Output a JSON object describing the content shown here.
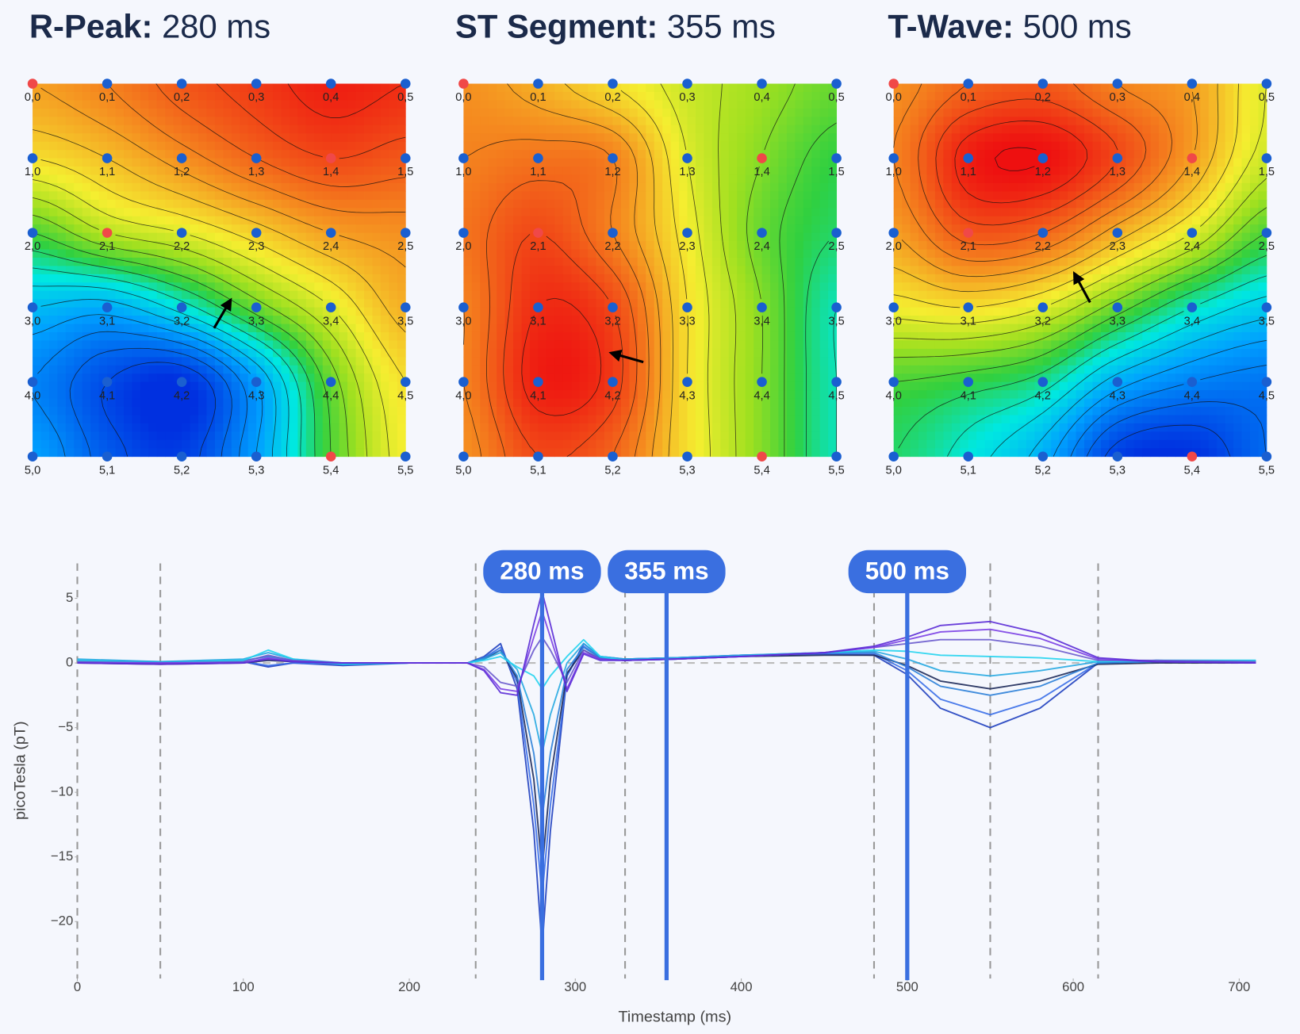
{
  "heatmaps": {
    "colorscale": [
      [
        -1,
        "#0030e0"
      ],
      [
        -0.6,
        "#00a0ff"
      ],
      [
        -0.35,
        "#00e8e0"
      ],
      [
        -0.15,
        "#30d040"
      ],
      [
        0.05,
        "#a0e020"
      ],
      [
        0.25,
        "#f5ee30"
      ],
      [
        0.55,
        "#f59020"
      ],
      [
        1,
        "#ee1010"
      ]
    ],
    "sensor_color": "#1a5fd0",
    "highlight_color": "#f04848",
    "highlighted": [
      [
        0,
        0
      ],
      [
        1,
        4
      ],
      [
        2,
        1
      ],
      [
        5,
        4
      ]
    ],
    "sensor_labels": [
      [
        "0,0",
        "0,1",
        "0,2",
        "0,3",
        "0,4",
        "0,5"
      ],
      [
        "1,0",
        "1,1",
        "1,2",
        "1,3",
        "1,4",
        "1,5"
      ],
      [
        "2,0",
        "2,1",
        "2,2",
        "2,3",
        "2,4",
        "2,5"
      ],
      [
        "3,0",
        "3,1",
        "3,2",
        "3,3",
        "3,4",
        "3,5"
      ],
      [
        "4,0",
        "4,1",
        "4,2",
        "4,3",
        "4,4",
        "4,5"
      ],
      [
        "5,0",
        "5,1",
        "5,2",
        "5,3",
        "5,4",
        "5,5"
      ]
    ],
    "maps": [
      {
        "label": "R-Peak:",
        "time": "280 ms",
        "values": [
          [
            0.5,
            0.6,
            0.75,
            0.85,
            0.95,
            0.9
          ],
          [
            0.3,
            0.4,
            0.55,
            0.7,
            0.8,
            0.75
          ],
          [
            -0.1,
            0.1,
            0.2,
            0.35,
            0.5,
            0.55
          ],
          [
            -0.5,
            -0.55,
            -0.35,
            -0.05,
            0.2,
            0.45
          ],
          [
            -0.7,
            -0.9,
            -1.0,
            -0.6,
            -0.05,
            0.3
          ],
          [
            -0.6,
            -0.85,
            -0.95,
            -0.6,
            -0.1,
            0.25
          ]
        ]
      },
      {
        "label": "ST Segment:",
        "time": "355 ms",
        "values": [
          [
            0.55,
            0.45,
            0.3,
            0.15,
            0.05,
            -0.05
          ],
          [
            0.6,
            0.65,
            0.6,
            0.2,
            0.0,
            -0.15
          ],
          [
            0.65,
            0.8,
            0.6,
            0.25,
            -0.05,
            -0.2
          ],
          [
            0.6,
            0.9,
            0.8,
            0.3,
            0.0,
            -0.3
          ],
          [
            0.6,
            0.95,
            0.85,
            0.3,
            0.0,
            -0.3
          ],
          [
            0.55,
            0.8,
            0.7,
            0.3,
            0.0,
            -0.3
          ]
        ]
      },
      {
        "label": "T-Wave:",
        "time": "500 ms",
        "values": [
          [
            0.55,
            0.7,
            0.75,
            0.6,
            0.5,
            0.2
          ],
          [
            0.6,
            0.95,
            1.0,
            0.8,
            0.5,
            0.15
          ],
          [
            0.5,
            0.75,
            0.7,
            0.45,
            0.2,
            -0.1
          ],
          [
            0.25,
            0.3,
            0.2,
            -0.05,
            -0.3,
            -0.45
          ],
          [
            -0.1,
            -0.15,
            -0.25,
            -0.55,
            -0.7,
            -0.75
          ],
          [
            -0.2,
            -0.35,
            -0.55,
            -0.95,
            -1.0,
            -0.8
          ]
        ]
      }
    ]
  },
  "chart_data": {
    "type": "line",
    "x_label": "Timestamp (ms)",
    "y_label": "picoTesla (pT)",
    "xlim": [
      0,
      710
    ],
    "ylim": [
      -24.4,
      7.7
    ],
    "xticks": [
      0,
      100,
      200,
      300,
      400,
      500,
      600,
      700
    ],
    "yticks": [
      {
        "value": -20,
        "label": "−20"
      },
      {
        "value": -15,
        "label": "−15"
      },
      {
        "value": -10,
        "label": "−10"
      },
      {
        "value": -5,
        "label": "−5"
      },
      0,
      5
    ],
    "zeroline": true,
    "vlines": [
      0,
      50,
      240,
      330,
      480,
      550,
      615
    ],
    "marker_color": "#3a6fe0",
    "markers": [
      {
        "x": 280,
        "label": "280 ms"
      },
      {
        "x": 355,
        "label": "355 ms"
      },
      {
        "x": 500,
        "label": "500 ms"
      }
    ],
    "x": [
      0,
      50,
      100,
      115,
      130,
      160,
      200,
      235,
      245,
      255,
      265,
      275,
      280,
      285,
      295,
      305,
      315,
      330,
      360,
      400,
      450,
      480,
      500,
      520,
      550,
      580,
      615,
      650,
      710
    ],
    "series": [
      {
        "color": "#1f3fbf",
        "values": [
          0.2,
          0,
          0.1,
          -0.3,
          0,
          -0.2,
          0,
          0,
          0.5,
          1.5,
          -2,
          -13,
          -22,
          -13,
          -1,
          1.5,
          0.5,
          0.3,
          0.4,
          0.6,
          0.7,
          0.6,
          -0.9,
          -3.5,
          -5,
          -3.5,
          0,
          0.2,
          0.1
        ]
      },
      {
        "color": "#3a6ee8",
        "values": [
          0.1,
          0,
          0.1,
          -0.2,
          0,
          -0.1,
          0,
          0,
          0.4,
          1.2,
          -1.5,
          -11,
          -18,
          -11,
          -1,
          1.3,
          0.4,
          0.3,
          0.4,
          0.5,
          0.7,
          0.7,
          -0.6,
          -2.8,
          -4,
          -2.8,
          0,
          0.1,
          0.1
        ]
      },
      {
        "color": "#1e2a5a",
        "values": [
          0,
          -0.1,
          0,
          0.2,
          0.1,
          0,
          0,
          0,
          0.3,
          1,
          -1.2,
          -9,
          -16,
          -9,
          -0.8,
          1,
          0.3,
          0.2,
          0.3,
          0.5,
          0.6,
          0.6,
          -0.2,
          -1.4,
          -2,
          -1.4,
          -0.1,
          0,
          0
        ]
      },
      {
        "color": "#2c7fd8",
        "values": [
          0.2,
          0.1,
          0.2,
          0.5,
          0.2,
          -0.1,
          0,
          0,
          0.4,
          1,
          -1,
          -7,
          -12,
          -7,
          -0.5,
          1.2,
          0.4,
          0.3,
          0.4,
          0.6,
          0.8,
          0.8,
          -0.3,
          -1.8,
          -2.5,
          -1.8,
          0,
          0.1,
          0.1
        ]
      },
      {
        "color": "#27a9e1",
        "values": [
          0.3,
          0.1,
          0.3,
          0.8,
          0.3,
          0,
          0,
          0,
          0.3,
          0.8,
          -0.5,
          -4,
          -7,
          -4,
          0,
          1.5,
          0.5,
          0.3,
          0.4,
          0.6,
          0.8,
          0.9,
          0.3,
          -0.6,
          -1,
          -0.6,
          0.1,
          0.2,
          0.2
        ]
      },
      {
        "color": "#22d3ee",
        "values": [
          0.2,
          0,
          0.2,
          1,
          0.3,
          -0.1,
          0,
          0,
          0.2,
          0.5,
          -0.3,
          -1,
          -2,
          -1,
          0.5,
          1.8,
          0.5,
          0.2,
          0.3,
          0.5,
          0.8,
          1,
          0.9,
          0.6,
          0.5,
          0.4,
          0.1,
          0.2,
          0.2
        ]
      },
      {
        "color": "#6a5acd",
        "values": [
          0.1,
          0,
          0.1,
          0.6,
          0.2,
          0,
          0,
          0,
          -0.3,
          -1.5,
          -1.8,
          1,
          2,
          1,
          -1.5,
          1,
          0.3,
          0.2,
          0.3,
          0.5,
          0.8,
          1.2,
          1.5,
          1.8,
          1.8,
          1.3,
          0.2,
          0.2,
          0.1
        ]
      },
      {
        "color": "#7b3fe4",
        "values": [
          0,
          0,
          0,
          0.4,
          0.1,
          0,
          0,
          0,
          -0.5,
          -2,
          -2.2,
          2,
          4,
          2,
          -2,
          0.8,
          0.3,
          0.2,
          0.3,
          0.5,
          0.8,
          1.2,
          1.8,
          2.4,
          2.6,
          1.9,
          0.3,
          0.1,
          0
        ]
      },
      {
        "color": "#5b2bd6",
        "values": [
          0,
          -0.1,
          0,
          0.3,
          0.1,
          0,
          0,
          0,
          -0.6,
          -2.3,
          -2.5,
          3,
          5.5,
          3,
          -2.2,
          0.7,
          0.2,
          0.2,
          0.3,
          0.5,
          0.8,
          1.3,
          2,
          2.9,
          3.2,
          2.3,
          0.4,
          0.1,
          0
        ]
      }
    ]
  }
}
